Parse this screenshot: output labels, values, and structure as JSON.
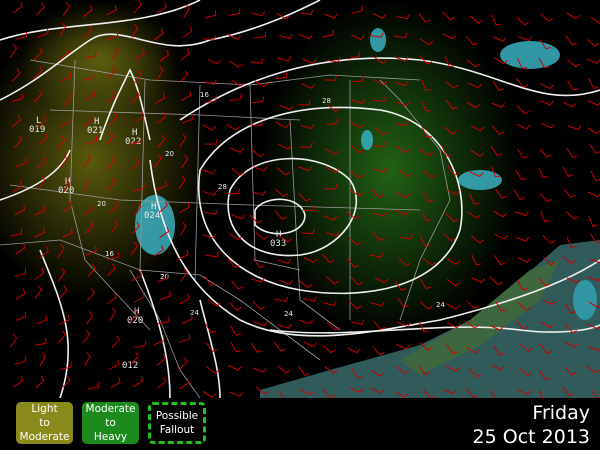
{
  "legend": [
    {
      "label": "Light\nto\nModerate",
      "color": "#8a8a1a"
    },
    {
      "label": "Moderate\nto\nHeavy",
      "color": "#1d8a1d"
    },
    {
      "label": "Possible\nFallout",
      "color": "#1fc01f"
    }
  ],
  "date": {
    "day": "Friday",
    "date": "25 Oct 2013"
  },
  "pressure_centers": [
    {
      "type": "L",
      "value": "019"
    },
    {
      "type": "H",
      "value": "021"
    },
    {
      "type": "H",
      "value": "022"
    },
    {
      "type": "H",
      "value": "020"
    },
    {
      "type": "H",
      "value": "024"
    },
    {
      "type": "H",
      "value": "033"
    },
    {
      "type": "H",
      "value": "020"
    },
    {
      "type": "",
      "value": "012"
    }
  ],
  "contour_labels": [
    "16",
    "20",
    "20",
    "24",
    "24",
    "28",
    "28",
    "20",
    "16",
    "24"
  ],
  "colors": {
    "contour": "#f0f0f0",
    "wind_barb": "#cc0000",
    "border": "#9a9a9a",
    "precip": "#3ab0c0"
  }
}
